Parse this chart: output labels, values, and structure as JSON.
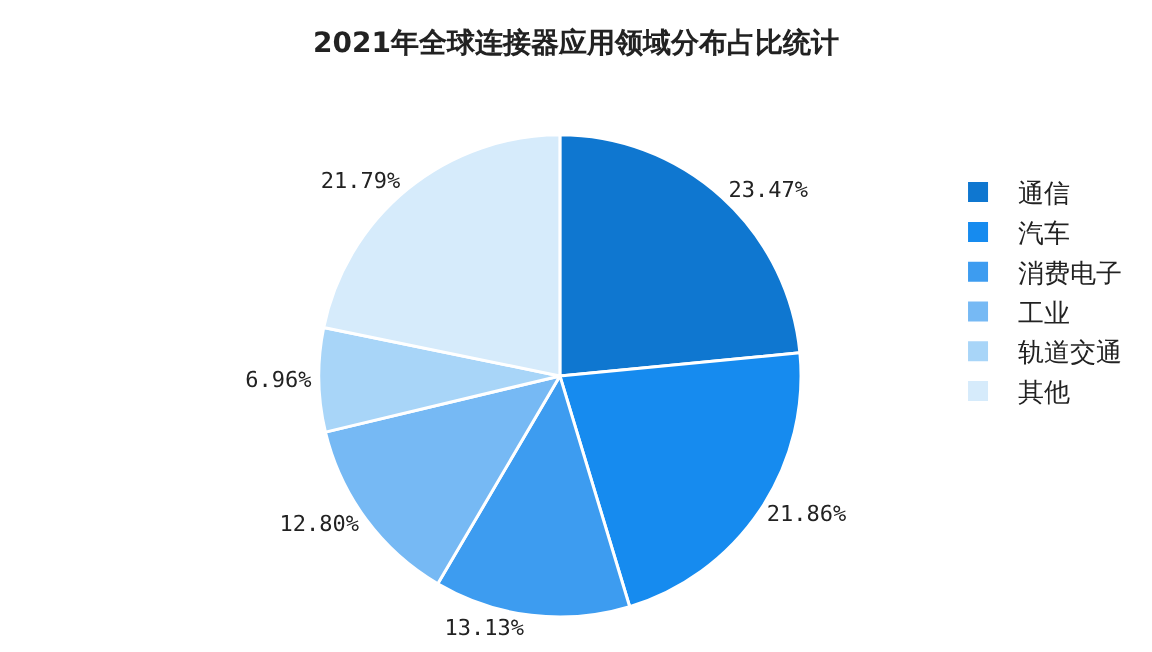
{
  "chart_data": {
    "type": "pie",
    "title": "2021年全球连接器应用领域分布占比统计",
    "categories": [
      "通信",
      "汽车",
      "消费电子",
      "工业",
      "轨道交通",
      "其他"
    ],
    "values": [
      23.47,
      21.86,
      13.13,
      12.8,
      6.96,
      21.79
    ],
    "value_labels": [
      "23.47%",
      "21.86%",
      "13.13%",
      "12.80%",
      "6.96%",
      "21.79%"
    ],
    "colors": [
      "#0f77d0",
      "#168bef",
      "#3d9cf0",
      "#76b9f4",
      "#a8d5f8",
      "#d6ebfb"
    ],
    "legend": "right"
  }
}
